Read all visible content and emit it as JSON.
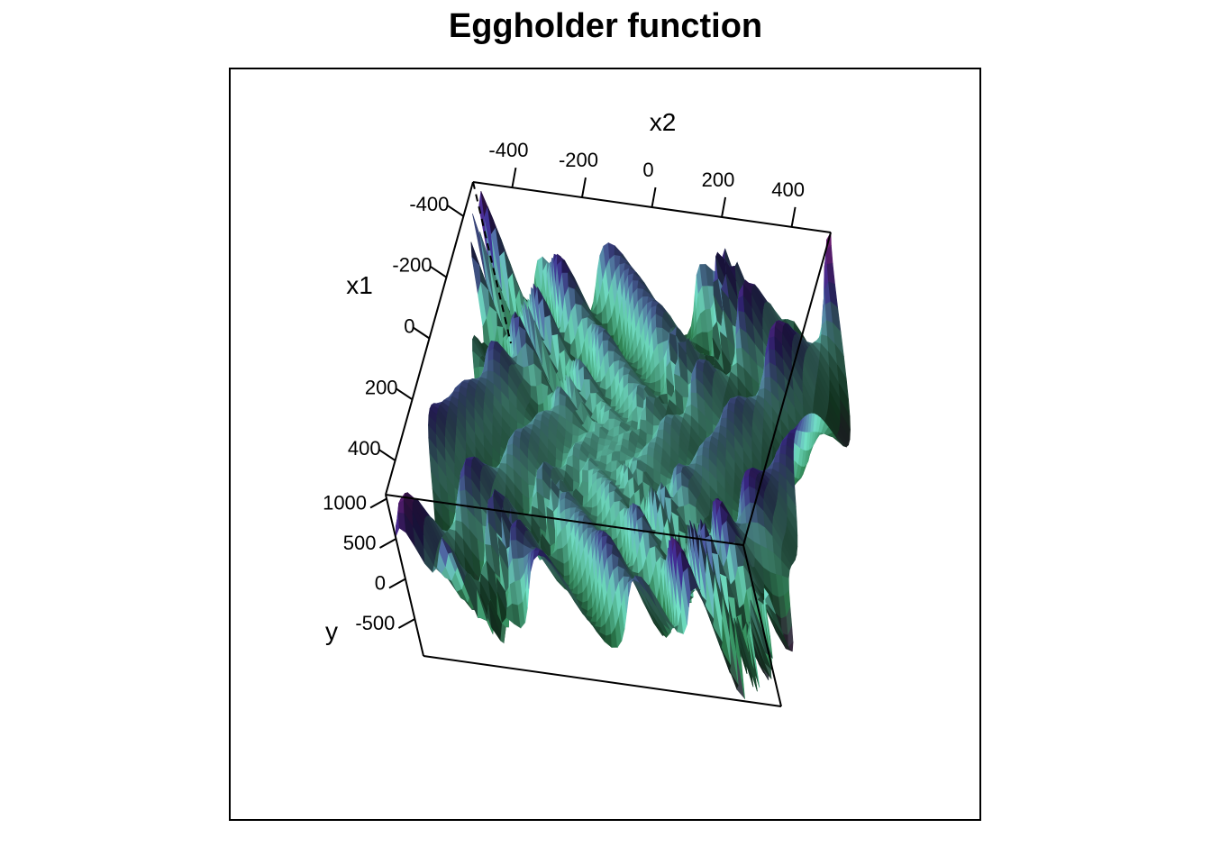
{
  "chart_data": {
    "type": "surface3d",
    "title": "Eggholder function",
    "function": "y = -(x2 + 47) * sin(sqrt(|x2 + x1/2 + 47|)) - x1 * sin(sqrt(|x1 - (x2 + 47)|))",
    "axes": {
      "x1": {
        "label": "x1",
        "range": [
          -512,
          512
        ],
        "ticks": [
          -400,
          -200,
          0,
          200,
          400
        ]
      },
      "x2": {
        "label": "x2",
        "range": [
          -512,
          512
        ],
        "ticks": [
          -400,
          -200,
          0,
          200,
          400
        ]
      },
      "y": {
        "label": "y",
        "range": [
          -960,
          1050
        ],
        "ticks": [
          -500,
          0,
          500,
          1000
        ]
      }
    },
    "grid": 60,
    "box": true,
    "colors": {
      "low": "#4a1a4a",
      "mid_low": "#2a7a4a",
      "mid": "#6ad0b8",
      "mid_high": "#3a2a8a",
      "high": "#7a1a70"
    }
  }
}
